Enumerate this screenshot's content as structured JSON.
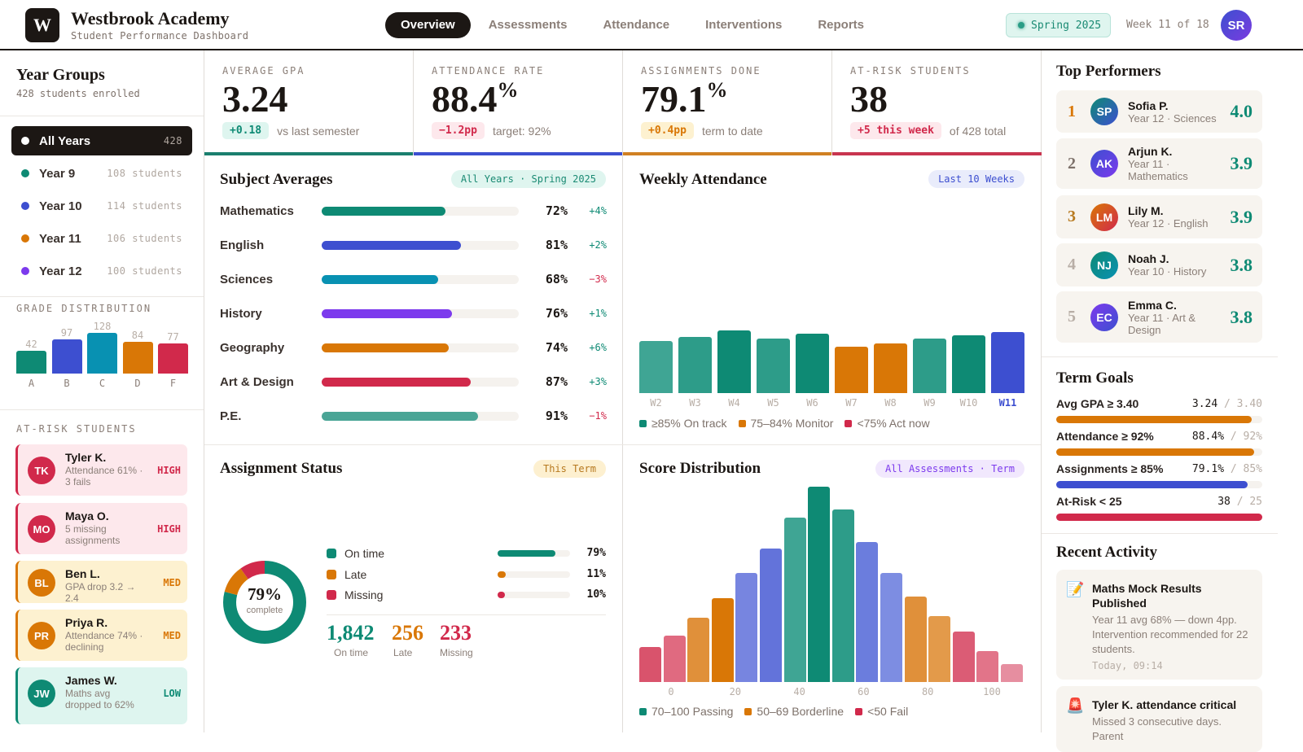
{
  "header": {
    "logo_letter": "W",
    "title": "Westbrook Academy",
    "subtitle": "Student Performance Dashboard",
    "nav": [
      "Overview",
      "Assessments",
      "Attendance",
      "Interventions",
      "Reports"
    ],
    "active_nav": "Overview",
    "term": "Spring 2025",
    "week": "Week 11 of 18",
    "user_initials": "SR"
  },
  "sidebar": {
    "title": "Year Groups",
    "subtitle": "428 students enrolled",
    "groups": [
      {
        "label": "All Years",
        "count": "428",
        "color": "#ffffff",
        "active": true
      },
      {
        "label": "Year 9",
        "count": "108 students",
        "color": "#0e8a74"
      },
      {
        "label": "Year 10",
        "count": "114 students",
        "color": "#3d4fd0"
      },
      {
        "label": "Year 11",
        "count": "106 students",
        "color": "#d97706"
      },
      {
        "label": "Year 12",
        "count": "100 students",
        "color": "#7c3aed"
      }
    ],
    "grade_title": "GRADE DISTRIBUTION",
    "grades": [
      {
        "label": "A",
        "value": 42,
        "color": "#0e8a74"
      },
      {
        "label": "B",
        "value": 97,
        "color": "#3d4fd0"
      },
      {
        "label": "C",
        "value": 128,
        "color": "#0891b2"
      },
      {
        "label": "D",
        "value": 84,
        "color": "#d97706"
      },
      {
        "label": "F",
        "value": 77,
        "color": "#d1294b"
      }
    ],
    "risk_title": "AT-RISK STUDENTS",
    "risk": [
      {
        "initials": "TK",
        "name": "Tyler K.",
        "desc": "Attendance 61% · 3 fails",
        "level": "HIGH"
      },
      {
        "initials": "MO",
        "name": "Maya O.",
        "desc": "5 missing assignments",
        "level": "HIGH"
      },
      {
        "initials": "BL",
        "name": "Ben L.",
        "desc": "GPA drop 3.2 → 2.4",
        "level": "MED"
      },
      {
        "initials": "PR",
        "name": "Priya R.",
        "desc": "Attendance 74% · declining",
        "level": "MED"
      },
      {
        "initials": "JW",
        "name": "James W.",
        "desc": "Maths avg dropped to 62%",
        "level": "LOW"
      }
    ]
  },
  "kpis": [
    {
      "label": "AVERAGE GPA",
      "value": "3.24",
      "unit": "",
      "badge": "+0.18",
      "note": "vs last semester",
      "tone": "green"
    },
    {
      "label": "ATTENDANCE RATE",
      "value": "88.4",
      "unit": "%",
      "badge": "−1.2pp",
      "note": "target: 92%",
      "tone": "red",
      "bar": "#3d4fd0"
    },
    {
      "label": "ASSIGNMENTS DONE",
      "value": "79.1",
      "unit": "%",
      "badge": "+0.4pp",
      "note": "term to date",
      "tone": "amber"
    },
    {
      "label": "AT-RISK STUDENTS",
      "value": "38",
      "unit": "",
      "badge": "+5 this week",
      "note": "of 428 total",
      "tone": "red"
    }
  ],
  "subjects": {
    "title": "Subject Averages",
    "filter": "All Years · Spring 2025",
    "items": [
      {
        "name": "Mathematics",
        "pct": 72,
        "change": "+4%",
        "color": "#0e8a74"
      },
      {
        "name": "English",
        "pct": 81,
        "change": "+2%",
        "color": "#3d4fd0"
      },
      {
        "name": "Sciences",
        "pct": 68,
        "change": "−3%",
        "color": "#0891b2"
      },
      {
        "name": "History",
        "pct": 76,
        "change": "+1%",
        "color": "#7c3aed"
      },
      {
        "name": "Geography",
        "pct": 74,
        "change": "+6%",
        "color": "#d97706"
      },
      {
        "name": "Art & Design",
        "pct": 87,
        "change": "+3%",
        "color": "#d1294b"
      },
      {
        "name": "P.E.",
        "pct": 91,
        "change": "−1%",
        "color": "#4aa596"
      }
    ]
  },
  "attendance": {
    "title": "Weekly Attendance",
    "filter": "Last 10 Weeks",
    "legend": [
      "≥85% On track",
      "75–84% Monitor",
      "<75% Act now"
    ],
    "chart_data": {
      "type": "bar",
      "categories": [
        "W2",
        "W3",
        "W4",
        "W5",
        "W6",
        "W7",
        "W8",
        "W9",
        "W10",
        "W11"
      ],
      "values": [
        85.6,
        87.6,
        90.8,
        86.8,
        89.2,
        82.8,
        84.4,
        86.8,
        88.4,
        90.0
      ],
      "highlight": "W11",
      "colors": {
        "on_track": "#0e8a74",
        "monitor": "#d97706",
        "act_now": "#d1294b",
        "current": "#3d4fd0"
      }
    }
  },
  "assignments": {
    "title": "Assignment Status",
    "filter": "This Term",
    "center_value": "79%",
    "center_label": "complete",
    "items": [
      {
        "label": "On time",
        "pct": 79,
        "pct_label": "79%",
        "count": "1,842",
        "color": "#0e8a74"
      },
      {
        "label": "Late",
        "pct": 11,
        "pct_label": "11%",
        "count": "256",
        "color": "#d97706"
      },
      {
        "label": "Missing",
        "pct": 10,
        "pct_label": "10%",
        "count": "233",
        "color": "#d1294b"
      }
    ]
  },
  "scores": {
    "title": "Score Distribution",
    "filter": "All Assessments · Term",
    "legend": [
      "70–100 Passing",
      "50–69 Borderline",
      "<50 Fail"
    ],
    "chart_data": {
      "type": "bar",
      "x_ticks": [
        "0",
        "20",
        "40",
        "60",
        "80",
        "100"
      ],
      "values": [
        43,
        57,
        79,
        103,
        134,
        164,
        202,
        240,
        212,
        172,
        134,
        105,
        81,
        62,
        38,
        22
      ],
      "colors": [
        "#d9536c",
        "#e06a80",
        "#e0903a",
        "#d97706",
        "#7785e0",
        "#6373da",
        "#3fa594",
        "#0e8a74",
        "#2d9c89",
        "#6b7ddd",
        "#7d8de2",
        "#e0903a",
        "#e39a4a",
        "#db5c75",
        "#e27489",
        "#e68ea0"
      ]
    }
  },
  "top": {
    "title": "Top Performers",
    "items": [
      {
        "rank": "1",
        "initials": "SP",
        "name": "Sofia P.",
        "desc": "Year 12 · Sciences",
        "gpa": "4.0",
        "rank_color": "#d97706",
        "grad": [
          "#0e8a74",
          "#3d4fd0"
        ]
      },
      {
        "rank": "2",
        "initials": "AK",
        "name": "Arjun K.",
        "desc": "Year 11 · Mathematics",
        "gpa": "3.9",
        "rank_color": "#7d716a",
        "grad": [
          "#3d4fd0",
          "#7c3aed"
        ]
      },
      {
        "rank": "3",
        "initials": "LM",
        "name": "Lily M.",
        "desc": "Year 12 · English",
        "gpa": "3.9",
        "rank_color": "#b7791f",
        "grad": [
          "#d97706",
          "#d1294b"
        ]
      },
      {
        "rank": "4",
        "initials": "NJ",
        "name": "Noah J.",
        "desc": "Year 10 · History",
        "gpa": "3.8",
        "rank_color": "#b8aea6",
        "grad": [
          "#0e8a74",
          "#0891b2"
        ]
      },
      {
        "rank": "5",
        "initials": "EC",
        "name": "Emma C.",
        "desc": "Year 11 · Art & Design",
        "gpa": "3.8",
        "rank_color": "#b8aea6",
        "grad": [
          "#7c3aed",
          "#3d4fd0"
        ]
      }
    ]
  },
  "goals": {
    "title": "Term Goals",
    "items": [
      {
        "label": "Avg GPA ≥ 3.40",
        "current": "3.24",
        "target": "/ 3.40",
        "pct": 95,
        "color": "#d97706"
      },
      {
        "label": "Attendance ≥ 92%",
        "current": "88.4%",
        "target": "/ 92%",
        "pct": 96,
        "color": "#d97706"
      },
      {
        "label": "Assignments ≥ 85%",
        "current": "79.1%",
        "target": "/ 85%",
        "pct": 93,
        "color": "#3d4fd0"
      },
      {
        "label": "At-Risk < 25",
        "current": "38",
        "target": "/ 25",
        "pct": 100,
        "color": "#d1294b"
      }
    ]
  },
  "activity": {
    "title": "Recent Activity",
    "items": [
      {
        "icon": "📝",
        "icon_name": "memo-icon",
        "title": "Maths Mock Results Published",
        "desc": "Year 11 avg 68% — down 4pp. Intervention recommended for 22 students.",
        "time": "Today, 09:14"
      },
      {
        "icon": "🚨",
        "icon_name": "siren-icon",
        "title": "Tyler K. attendance critical",
        "desc": "Missed 3 consecutive days. Parent",
        "time": ""
      }
    ]
  }
}
